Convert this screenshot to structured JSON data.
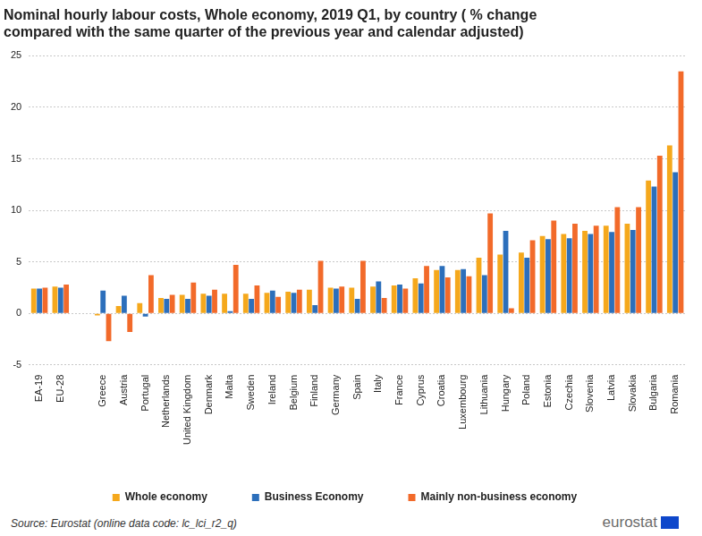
{
  "chart_data": {
    "type": "bar",
    "title": [
      "Nominal hourly labour costs, Whole economy, 2019 Q1, by country ( % change",
      "compared with the same quarter of the previous year and calendar adjusted)"
    ],
    "categories": [
      "EA-19",
      "EU-28",
      null,
      "Greece",
      "Austria",
      "Portugal",
      "Netherlands",
      "United Kingdom",
      "Denmark",
      "Malta",
      "Sweden",
      "Ireland",
      "Belgium",
      "Finland",
      "Germany",
      "Spain",
      "Italy",
      "France",
      "Cyprus",
      "Croatia",
      "Luxembourg",
      "Lithuania",
      "Hungary",
      "Poland",
      "Estonia",
      "Czechia",
      "Slovenia",
      "Latvia",
      "Slovakia",
      "Bulgaria",
      "Romania"
    ],
    "series": [
      {
        "name": "Whole economy",
        "color": "#f5a81c",
        "values": [
          2.4,
          2.6,
          null,
          -0.2,
          0.7,
          1.0,
          1.5,
          1.8,
          1.9,
          1.9,
          1.9,
          2.0,
          2.1,
          2.3,
          2.5,
          2.5,
          2.6,
          2.7,
          3.4,
          4.2,
          4.2,
          5.4,
          5.7,
          5.9,
          7.5,
          7.7,
          8.0,
          8.5,
          8.7,
          12.9,
          16.3
        ]
      },
      {
        "name": "Business Economy",
        "color": "#2c6fbb",
        "values": [
          2.4,
          2.5,
          null,
          2.2,
          1.7,
          -0.3,
          1.4,
          1.4,
          1.7,
          0.2,
          1.4,
          2.2,
          2.0,
          0.8,
          2.4,
          1.4,
          3.1,
          2.8,
          2.9,
          4.6,
          4.3,
          3.7,
          8.0,
          5.4,
          7.2,
          7.3,
          7.7,
          7.9,
          8.1,
          12.3,
          13.7
        ]
      },
      {
        "name": "Mainly non-business economy",
        "color": "#f26a2a",
        "values": [
          2.5,
          2.8,
          null,
          -2.7,
          -1.8,
          3.7,
          1.8,
          3.0,
          2.3,
          4.7,
          2.7,
          1.6,
          2.3,
          5.1,
          2.6,
          5.1,
          1.5,
          2.4,
          4.6,
          3.5,
          3.6,
          9.7,
          0.5,
          7.1,
          9.0,
          8.7,
          8.5,
          10.3,
          10.3,
          15.3,
          23.5
        ]
      }
    ],
    "ylim": [
      -5,
      25
    ],
    "yticks": [
      -5,
      0,
      5,
      10,
      15,
      20,
      25
    ],
    "grid": true,
    "legend": "bottom",
    "source": "Source: Eurostat (online data code: lc_lci_r2_q)",
    "logo": "eurostat"
  }
}
